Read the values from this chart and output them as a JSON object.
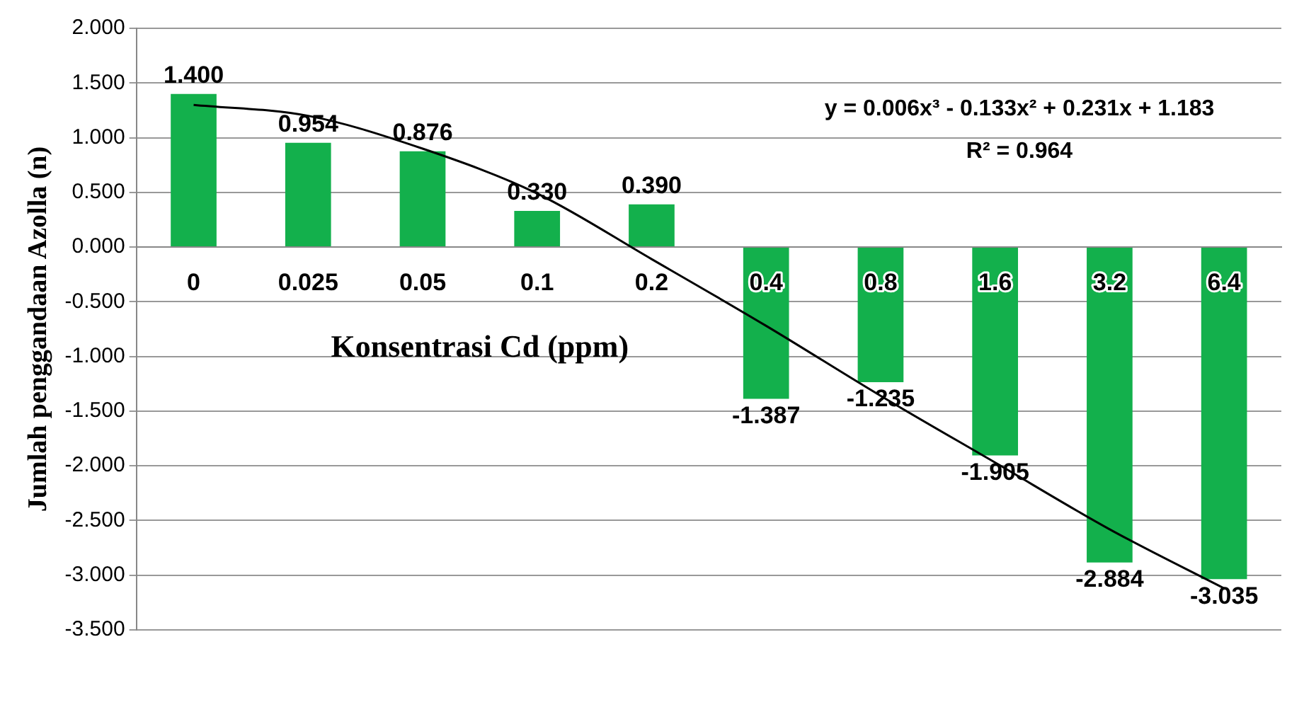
{
  "chart_data": {
    "type": "bar",
    "ylabel": "Jumlah penggandaan Azolla (n)",
    "xlabel": "Konsentrasi Cd (ppm)",
    "categories": [
      "0",
      "0.025",
      "0.05",
      "0.1",
      "0.2",
      "0.4",
      "0.8",
      "1.6",
      "3.2",
      "6.4"
    ],
    "series": [
      {
        "color": "#13b04c",
        "values": [
          1.4,
          0.954,
          0.876,
          0.33,
          0.39,
          -1.387,
          -1.235,
          -1.905,
          -2.884,
          -3.035
        ],
        "value_labels": [
          "1.400",
          "0.954",
          "0.876",
          "0.330",
          "0.390",
          "-1.387",
          "-1.235",
          "-1.905",
          "-2.884",
          "-3.035"
        ]
      },
      {
        "type": "line",
        "color": "#000000",
        "values": [
          1.3,
          1.2,
          0.9,
          0.49,
          -0.11,
          -0.72,
          -1.36,
          -1.97,
          -2.58,
          -3.12
        ]
      }
    ],
    "ylim": [
      -3.5,
      2.0
    ],
    "yticks": [
      {
        "value": 2,
        "label": "2.000"
      },
      {
        "value": 1.5,
        "label": "1.500"
      },
      {
        "value": 1,
        "label": "1.000"
      },
      {
        "value": 0.5,
        "label": "0.500"
      },
      {
        "value": 0,
        "label": "0.000"
      },
      {
        "value": -0.5,
        "label": "-0.500"
      },
      {
        "value": -1,
        "label": "-1.000"
      },
      {
        "value": -1.5,
        "label": "-1.500"
      },
      {
        "value": -2,
        "label": "-2.000"
      },
      {
        "value": -2.5,
        "label": "-2.500"
      },
      {
        "value": -3,
        "label": "-3.000"
      },
      {
        "value": -3.5,
        "label": "-3.500"
      }
    ],
    "grid": "y",
    "legend": false,
    "marker": "none",
    "annotations": [
      "y = 0.006x³ - 0.133x² + 0.231x + 1.183",
      "R² = 0.964"
    ]
  }
}
